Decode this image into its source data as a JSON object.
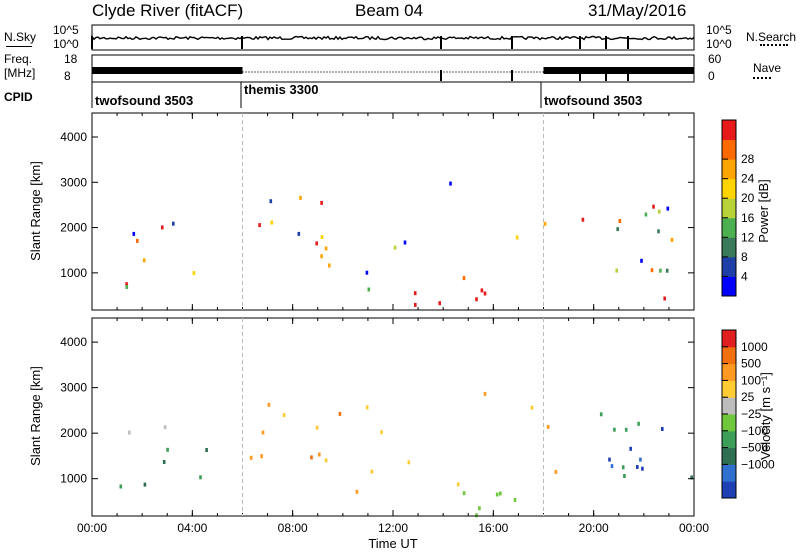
{
  "header": {
    "station": "Clyde River (fitACF)",
    "beam": "Beam 04",
    "date": "31/May/2016"
  },
  "summary_panels": {
    "nsky_label": "N.Sky",
    "nsky_ticks": [
      "10^5",
      "10^0"
    ],
    "nsearch_label": "N.Search",
    "nsearch_ticks": [
      "10^5",
      "10^0"
    ],
    "freq_label_top": "Freq.",
    "freq_label_unit": "[MHz]",
    "freq_ticks": [
      "18",
      "8"
    ],
    "nave_label": "Nave",
    "nave_ticks": [
      "60",
      "0"
    ],
    "cpid_label": "CPID",
    "cpid_segments": [
      {
        "name": "twofsound 3503",
        "start_hour": 0,
        "end_hour": 6
      },
      {
        "name": "themis 3300",
        "start_hour": 6,
        "end_hour": 18
      },
      {
        "name": "twofsound 3503",
        "start_hour": 18,
        "end_hour": 24
      }
    ]
  },
  "chart_data": [
    {
      "type": "heatmap",
      "title": "",
      "xlabel": "Time UT",
      "ylabel": "Slant Range [km]",
      "x_ticks": [
        "00:00",
        "04:00",
        "08:00",
        "12:00",
        "16:00",
        "20:00",
        "00:00"
      ],
      "xlim_hours": [
        0,
        24
      ],
      "y_ticks": [
        1000,
        2000,
        3000,
        4000
      ],
      "ylim": [
        180,
        4530
      ],
      "colorbar": {
        "label": "Power [dB]",
        "ticks": [
          "4",
          "8",
          "12",
          "16",
          "20",
          "24",
          "28"
        ],
        "colors": [
          "#0000ff",
          "#1e3fa8",
          "#3a7a5a",
          "#4caf50",
          "#b8d23a",
          "#ffd400",
          "#ffa500",
          "#ff6a00",
          "#e61a1a"
        ]
      }
    },
    {
      "type": "heatmap",
      "title": "",
      "xlabel": "Time UT",
      "ylabel": "Slant Range [km]",
      "x_ticks": [
        "00:00",
        "04:00",
        "08:00",
        "12:00",
        "16:00",
        "20:00",
        "00:00"
      ],
      "xlim_hours": [
        0,
        24
      ],
      "y_ticks": [
        1000,
        2000,
        3000,
        4000
      ],
      "ylim": [
        180,
        4530
      ],
      "colorbar": {
        "label": "Velocity [m s⁻¹]",
        "ticks": [
          "1000",
          "500",
          "100",
          "25",
          "−25",
          "−100",
          "−500",
          "−1000"
        ],
        "colors": [
          "#1f3fb5",
          "#2f6fcf",
          "#2e6f52",
          "#3e9e58",
          "#6fc83c",
          "#bdbdbd",
          "#ffcc33",
          "#ff9922",
          "#f07010",
          "#e02020"
        ]
      }
    }
  ]
}
